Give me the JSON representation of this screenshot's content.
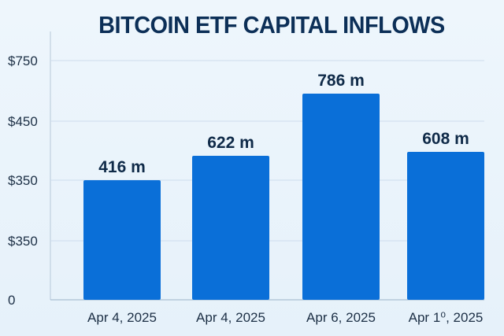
{
  "chart_data": {
    "type": "bar",
    "title": "BITCOIN ETF CAPITAL INFLOWS",
    "categories": [
      "Apr 4, 2025",
      "Apr 4, 2025",
      "Apr 6, 2025",
      "Apr 1⁰, 2025"
    ],
    "values": [
      416,
      622,
      786,
      608
    ],
    "value_labels": [
      "416 m",
      "622 m",
      "786 m",
      "608 m"
    ],
    "y_tick_labels": [
      "$750",
      "$450",
      "$350",
      "$350",
      "0"
    ],
    "xlabel": "",
    "ylabel": "",
    "grid": true,
    "bar_color": "#0a6fd8",
    "title_color": "#0c2f57"
  }
}
